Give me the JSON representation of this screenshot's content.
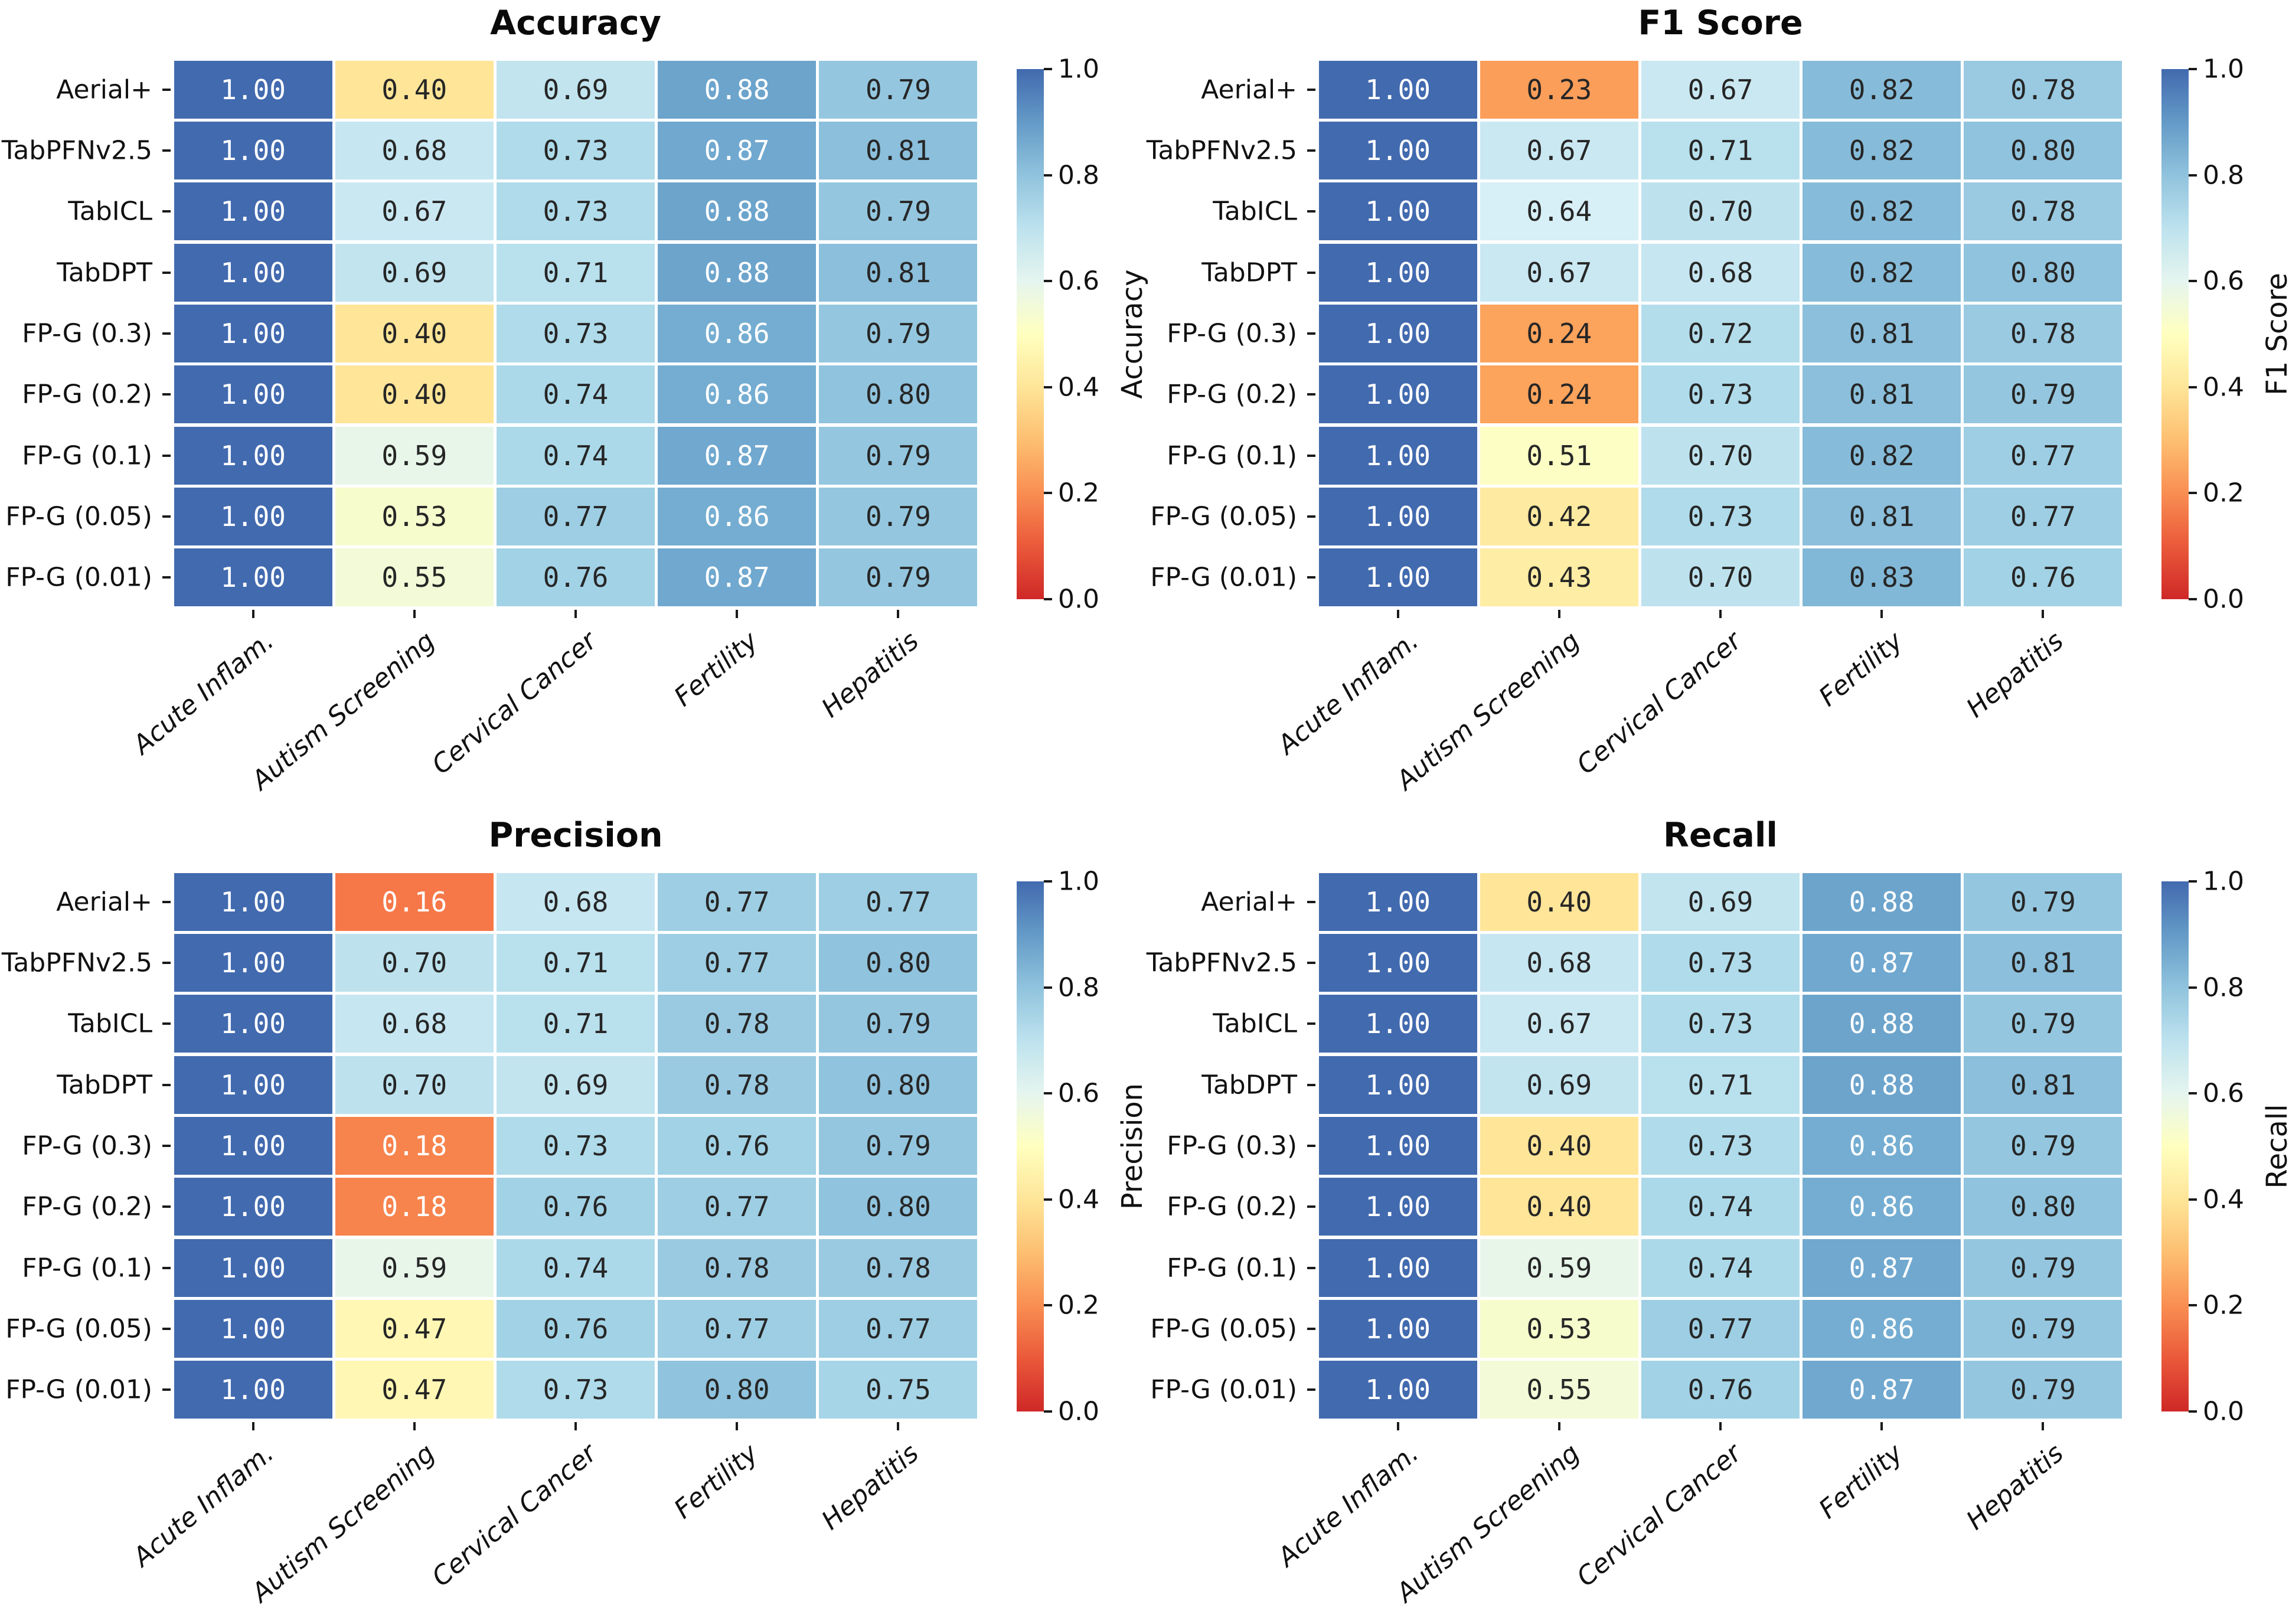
{
  "figure": {
    "background": "#ffffff",
    "annotation_value_format": "2-decimal"
  },
  "colors": {
    "colormap_name": "RdYlBu (truncated ends)",
    "colormap_stops": [
      "#a50026",
      "#d73027",
      "#f46d43",
      "#fdae61",
      "#fee090",
      "#ffffbf",
      "#e0f3f8",
      "#abd9e9",
      "#74add1",
      "#4575b4",
      "#313695"
    ],
    "colormap_domain_pad": 0.1,
    "annotation_dark": "#262626",
    "annotation_light": "#ffffff",
    "tick_color": "#1a1a1a",
    "label_color": "#111111"
  },
  "chart_data": [
    {
      "type": "heatmap",
      "title": "Accuracy",
      "rows": [
        "Aerial+",
        "TabPFNv2.5",
        "TabICL",
        "TabDPT",
        "FP-G (0.3)",
        "FP-G (0.2)",
        "FP-G (0.1)",
        "FP-G (0.05)",
        "FP-G (0.01)"
      ],
      "columns": [
        "Acute Inflam.",
        "Autism Screening",
        "Cervical Cancer",
        "Fertility",
        "Hepatitis"
      ],
      "values": [
        [
          1.0,
          0.4,
          0.69,
          0.88,
          0.79
        ],
        [
          1.0,
          0.68,
          0.73,
          0.87,
          0.81
        ],
        [
          1.0,
          0.67,
          0.73,
          0.88,
          0.79
        ],
        [
          1.0,
          0.69,
          0.71,
          0.88,
          0.81
        ],
        [
          1.0,
          0.4,
          0.73,
          0.86,
          0.79
        ],
        [
          1.0,
          0.4,
          0.74,
          0.86,
          0.8
        ],
        [
          1.0,
          0.59,
          0.74,
          0.87,
          0.79
        ],
        [
          1.0,
          0.53,
          0.77,
          0.86,
          0.79
        ],
        [
          1.0,
          0.55,
          0.76,
          0.87,
          0.79
        ]
      ],
      "colorbar": {
        "label": "Accuracy",
        "ticks": [
          "1.0",
          "0.8",
          "0.6",
          "0.4",
          "0.2",
          "0.0"
        ],
        "range": [
          0,
          1
        ]
      },
      "x_tick_rotation_deg": 40,
      "grid_line_color": "#ffffff"
    },
    {
      "type": "heatmap",
      "title": "F1 Score",
      "rows": [
        "Aerial+",
        "TabPFNv2.5",
        "TabICL",
        "TabDPT",
        "FP-G (0.3)",
        "FP-G (0.2)",
        "FP-G (0.1)",
        "FP-G (0.05)",
        "FP-G (0.01)"
      ],
      "columns": [
        "Acute Inflam.",
        "Autism Screening",
        "Cervical Cancer",
        "Fertility",
        "Hepatitis"
      ],
      "values": [
        [
          1.0,
          0.23,
          0.67,
          0.82,
          0.78
        ],
        [
          1.0,
          0.67,
          0.71,
          0.82,
          0.8
        ],
        [
          1.0,
          0.64,
          0.7,
          0.82,
          0.78
        ],
        [
          1.0,
          0.67,
          0.68,
          0.82,
          0.8
        ],
        [
          1.0,
          0.24,
          0.72,
          0.81,
          0.78
        ],
        [
          1.0,
          0.24,
          0.73,
          0.81,
          0.79
        ],
        [
          1.0,
          0.51,
          0.7,
          0.82,
          0.77
        ],
        [
          1.0,
          0.42,
          0.73,
          0.81,
          0.77
        ],
        [
          1.0,
          0.43,
          0.7,
          0.83,
          0.76
        ]
      ],
      "colorbar": {
        "label": "F1 Score",
        "ticks": [
          "1.0",
          "0.8",
          "0.6",
          "0.4",
          "0.2",
          "0.0"
        ],
        "range": [
          0,
          1
        ]
      },
      "x_tick_rotation_deg": 40,
      "grid_line_color": "#ffffff"
    },
    {
      "type": "heatmap",
      "title": "Precision",
      "rows": [
        "Aerial+",
        "TabPFNv2.5",
        "TabICL",
        "TabDPT",
        "FP-G (0.3)",
        "FP-G (0.2)",
        "FP-G (0.1)",
        "FP-G (0.05)",
        "FP-G (0.01)"
      ],
      "columns": [
        "Acute Inflam.",
        "Autism Screening",
        "Cervical Cancer",
        "Fertility",
        "Hepatitis"
      ],
      "values": [
        [
          1.0,
          0.16,
          0.68,
          0.77,
          0.77
        ],
        [
          1.0,
          0.7,
          0.71,
          0.77,
          0.8
        ],
        [
          1.0,
          0.68,
          0.71,
          0.78,
          0.79
        ],
        [
          1.0,
          0.7,
          0.69,
          0.78,
          0.8
        ],
        [
          1.0,
          0.18,
          0.73,
          0.76,
          0.79
        ],
        [
          1.0,
          0.18,
          0.76,
          0.77,
          0.8
        ],
        [
          1.0,
          0.59,
          0.74,
          0.78,
          0.78
        ],
        [
          1.0,
          0.47,
          0.76,
          0.77,
          0.77
        ],
        [
          1.0,
          0.47,
          0.73,
          0.8,
          0.75
        ]
      ],
      "colorbar": {
        "label": "Precision",
        "ticks": [
          "1.0",
          "0.8",
          "0.6",
          "0.4",
          "0.2",
          "0.0"
        ],
        "range": [
          0,
          1
        ]
      },
      "x_tick_rotation_deg": 40,
      "grid_line_color": "#ffffff"
    },
    {
      "type": "heatmap",
      "title": "Recall",
      "rows": [
        "Aerial+",
        "TabPFNv2.5",
        "TabICL",
        "TabDPT",
        "FP-G (0.3)",
        "FP-G (0.2)",
        "FP-G (0.1)",
        "FP-G (0.05)",
        "FP-G (0.01)"
      ],
      "columns": [
        "Acute Inflam.",
        "Autism Screening",
        "Cervical Cancer",
        "Fertility",
        "Hepatitis"
      ],
      "values": [
        [
          1.0,
          0.4,
          0.69,
          0.88,
          0.79
        ],
        [
          1.0,
          0.68,
          0.73,
          0.87,
          0.81
        ],
        [
          1.0,
          0.67,
          0.73,
          0.88,
          0.79
        ],
        [
          1.0,
          0.69,
          0.71,
          0.88,
          0.81
        ],
        [
          1.0,
          0.4,
          0.73,
          0.86,
          0.79
        ],
        [
          1.0,
          0.4,
          0.74,
          0.86,
          0.8
        ],
        [
          1.0,
          0.59,
          0.74,
          0.87,
          0.79
        ],
        [
          1.0,
          0.53,
          0.77,
          0.86,
          0.79
        ],
        [
          1.0,
          0.55,
          0.76,
          0.87,
          0.79
        ]
      ],
      "colorbar": {
        "label": "Recall",
        "ticks": [
          "1.0",
          "0.8",
          "0.6",
          "0.4",
          "0.2",
          "0.0"
        ],
        "range": [
          0,
          1
        ]
      },
      "x_tick_rotation_deg": 40,
      "grid_line_color": "#ffffff"
    }
  ]
}
